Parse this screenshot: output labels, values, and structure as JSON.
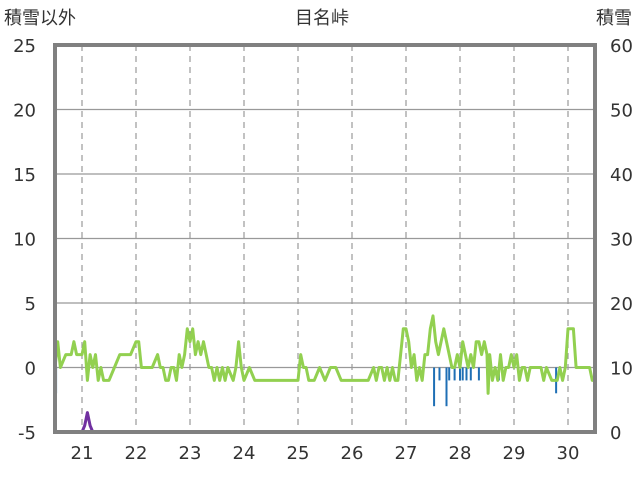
{
  "chart_data": {
    "type": "line",
    "title": "目名峠",
    "y_left_label": "積雪以外",
    "y_right_label": "積雪",
    "y_left_range": [
      -5,
      25
    ],
    "y_left_ticks": [
      25,
      20,
      15,
      10,
      5,
      0,
      -5
    ],
    "y_right_range": [
      0,
      60
    ],
    "y_right_ticks": [
      60,
      50,
      40,
      30,
      20,
      10,
      0
    ],
    "x_range": [
      20.5,
      30.5
    ],
    "x_ticks": [
      21,
      22,
      23,
      24,
      25,
      26,
      27,
      28,
      29,
      30
    ],
    "grid": {
      "horizontal": true,
      "vertical_dashed": true
    },
    "colors": {
      "frame": "#808080",
      "grid": "#999999",
      "precip": "#1f6fb5",
      "temp": "#92d050",
      "wind": "#7030a0",
      "snow": "#7030a0"
    },
    "series": [
      {
        "kind": "bar",
        "axis": "left",
        "bar_width_days": 0.025,
        "points": [
          [
            20.52,
            -2
          ],
          [
            21.1,
            -1
          ],
          [
            27.52,
            -3
          ],
          [
            27.62,
            -1
          ],
          [
            27.75,
            -3
          ],
          [
            27.8,
            -1
          ],
          [
            27.9,
            -1
          ],
          [
            28.0,
            -1
          ],
          [
            28.05,
            -1
          ],
          [
            28.12,
            -1
          ],
          [
            28.2,
            -1
          ],
          [
            28.35,
            -1
          ],
          [
            28.72,
            -1
          ],
          [
            29.78,
            -2
          ]
        ]
      },
      {
        "kind": "line",
        "axis": "left",
        "color_key": "temp",
        "points": [
          [
            20.5,
            0
          ],
          [
            20.55,
            2
          ],
          [
            20.6,
            0
          ],
          [
            20.7,
            1
          ],
          [
            20.8,
            1
          ],
          [
            20.85,
            2
          ],
          [
            20.9,
            1
          ],
          [
            20.95,
            1
          ],
          [
            21.0,
            1
          ],
          [
            21.05,
            2
          ],
          [
            21.1,
            -1
          ],
          [
            21.15,
            1
          ],
          [
            21.2,
            0
          ],
          [
            21.25,
            1
          ],
          [
            21.3,
            -1
          ],
          [
            21.35,
            0
          ],
          [
            21.4,
            -1
          ],
          [
            21.5,
            -1
          ],
          [
            21.6,
            0
          ],
          [
            21.7,
            1
          ],
          [
            21.8,
            1
          ],
          [
            21.9,
            1
          ],
          [
            22.0,
            2
          ],
          [
            22.05,
            2
          ],
          [
            22.1,
            0
          ],
          [
            22.2,
            0
          ],
          [
            22.3,
            0
          ],
          [
            22.4,
            1
          ],
          [
            22.45,
            0
          ],
          [
            22.5,
            0
          ],
          [
            22.55,
            -1
          ],
          [
            22.6,
            -1
          ],
          [
            22.65,
            0
          ],
          [
            22.7,
            0
          ],
          [
            22.75,
            -1
          ],
          [
            22.8,
            1
          ],
          [
            22.85,
            0
          ],
          [
            22.9,
            1
          ],
          [
            22.95,
            3
          ],
          [
            23.0,
            2
          ],
          [
            23.05,
            3
          ],
          [
            23.1,
            1
          ],
          [
            23.15,
            2
          ],
          [
            23.2,
            1
          ],
          [
            23.25,
            2
          ],
          [
            23.3,
            1
          ],
          [
            23.35,
            0
          ],
          [
            23.4,
            0
          ],
          [
            23.45,
            -1
          ],
          [
            23.5,
            0
          ],
          [
            23.55,
            -1
          ],
          [
            23.6,
            0
          ],
          [
            23.65,
            -1
          ],
          [
            23.7,
            0
          ],
          [
            23.8,
            -1
          ],
          [
            23.85,
            0
          ],
          [
            23.9,
            2
          ],
          [
            23.95,
            0
          ],
          [
            24.0,
            -1
          ],
          [
            24.1,
            0
          ],
          [
            24.2,
            -1
          ],
          [
            24.3,
            -1
          ],
          [
            24.5,
            -1
          ],
          [
            24.7,
            -1
          ],
          [
            24.9,
            -1
          ],
          [
            25.0,
            -1
          ],
          [
            25.05,
            1
          ],
          [
            25.1,
            0
          ],
          [
            25.15,
            0
          ],
          [
            25.2,
            -1
          ],
          [
            25.3,
            -1
          ],
          [
            25.4,
            0
          ],
          [
            25.5,
            -1
          ],
          [
            25.6,
            0
          ],
          [
            25.7,
            0
          ],
          [
            25.8,
            -1
          ],
          [
            26.0,
            -1
          ],
          [
            26.2,
            -1
          ],
          [
            26.3,
            -1
          ],
          [
            26.4,
            0
          ],
          [
            26.45,
            -1
          ],
          [
            26.5,
            0
          ],
          [
            26.55,
            0
          ],
          [
            26.6,
            -1
          ],
          [
            26.65,
            0
          ],
          [
            26.7,
            -1
          ],
          [
            26.75,
            0
          ],
          [
            26.8,
            -1
          ],
          [
            26.85,
            -1
          ],
          [
            26.9,
            1
          ],
          [
            26.95,
            3
          ],
          [
            27.0,
            3
          ],
          [
            27.05,
            2
          ],
          [
            27.1,
            0
          ],
          [
            27.15,
            1
          ],
          [
            27.2,
            -1
          ],
          [
            27.25,
            0
          ],
          [
            27.3,
            -1
          ],
          [
            27.35,
            1
          ],
          [
            27.4,
            1
          ],
          [
            27.45,
            3
          ],
          [
            27.5,
            4
          ],
          [
            27.55,
            2
          ],
          [
            27.6,
            1
          ],
          [
            27.65,
            2
          ],
          [
            27.7,
            3
          ],
          [
            27.75,
            2
          ],
          [
            27.8,
            1
          ],
          [
            27.85,
            0
          ],
          [
            27.9,
            0
          ],
          [
            27.95,
            1
          ],
          [
            28.0,
            0
          ],
          [
            28.05,
            2
          ],
          [
            28.1,
            1
          ],
          [
            28.15,
            0
          ],
          [
            28.2,
            1
          ],
          [
            28.25,
            0
          ],
          [
            28.3,
            2
          ],
          [
            28.35,
            2
          ],
          [
            28.4,
            1
          ],
          [
            28.45,
            2
          ],
          [
            28.5,
            1
          ],
          [
            28.52,
            -2
          ],
          [
            28.55,
            1
          ],
          [
            28.6,
            -1
          ],
          [
            28.65,
            0
          ],
          [
            28.7,
            -1
          ],
          [
            28.75,
            1
          ],
          [
            28.8,
            -1
          ],
          [
            28.85,
            0
          ],
          [
            28.9,
            0
          ],
          [
            28.95,
            1
          ],
          [
            29.0,
            0
          ],
          [
            29.05,
            1
          ],
          [
            29.1,
            -1
          ],
          [
            29.15,
            0
          ],
          [
            29.2,
            0
          ],
          [
            29.25,
            -1
          ],
          [
            29.3,
            0
          ],
          [
            29.4,
            0
          ],
          [
            29.5,
            0
          ],
          [
            29.55,
            -1
          ],
          [
            29.6,
            0
          ],
          [
            29.7,
            -1
          ],
          [
            29.8,
            -1
          ],
          [
            29.85,
            0
          ],
          [
            29.9,
            -1
          ],
          [
            29.95,
            0
          ],
          [
            30.0,
            3
          ],
          [
            30.05,
            3
          ],
          [
            30.1,
            3
          ],
          [
            30.15,
            0
          ],
          [
            30.2,
            0
          ],
          [
            30.3,
            0
          ],
          [
            30.4,
            0
          ],
          [
            30.45,
            -1
          ],
          [
            30.5,
            -1
          ]
        ]
      },
      {
        "kind": "line",
        "axis": "left",
        "color_key": "wind",
        "points": [
          [
            20.5,
            -5
          ],
          [
            21.0,
            -5
          ],
          [
            21.05,
            -4.5
          ],
          [
            21.1,
            -3.5
          ],
          [
            21.15,
            -4.5
          ],
          [
            21.2,
            -5
          ],
          [
            30.5,
            -5
          ]
        ]
      },
      {
        "kind": "line",
        "axis": "right",
        "color_key": "snow",
        "points": [
          [
            20.5,
            0
          ],
          [
            30.5,
            0
          ]
        ]
      }
    ]
  }
}
